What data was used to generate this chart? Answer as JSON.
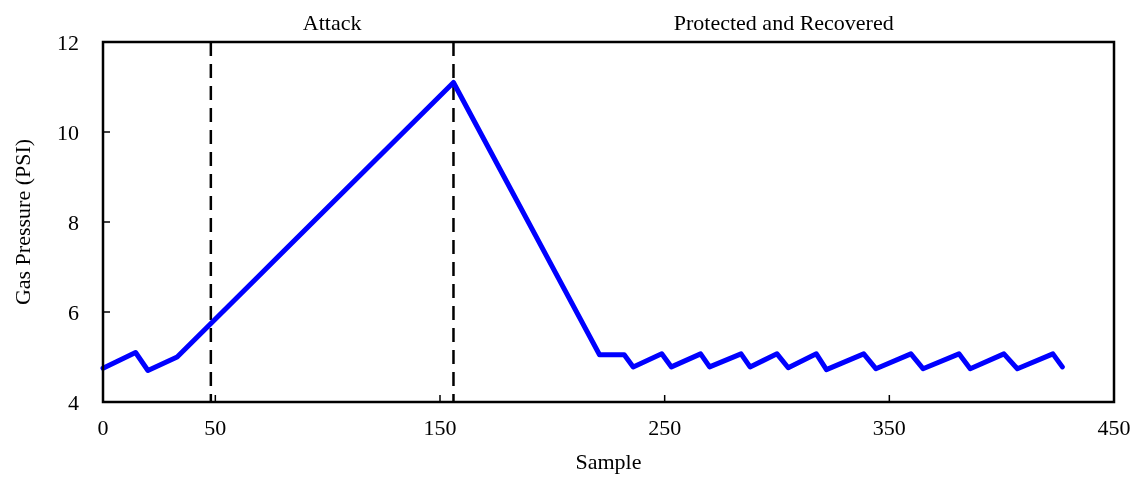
{
  "chart_data": {
    "type": "line",
    "xlabel": "Sample",
    "ylabel": "Gas Pressure (PSI)",
    "xlim": [
      0,
      450
    ],
    "ylim": [
      4,
      12
    ],
    "xticks": [
      0,
      50,
      150,
      250,
      350,
      450
    ],
    "yticks": [
      4,
      6,
      8,
      10,
      12
    ],
    "grid": false,
    "marker": "none",
    "line_style": "solid",
    "series": [
      {
        "color": "#0000ff",
        "x": [
          0,
          14.5,
          20,
          33,
          156,
          221,
          232,
          236,
          248.7,
          253,
          266,
          270,
          284,
          288,
          300,
          305,
          317.5,
          322,
          338.6,
          344,
          359.6,
          365,
          381,
          386,
          401,
          407,
          422.8,
          427
        ],
        "values": [
          4.75,
          5.1,
          4.7,
          5.0,
          11.1,
          5.05,
          5.05,
          4.78,
          5.07,
          4.78,
          5.07,
          4.78,
          5.07,
          4.78,
          5.07,
          4.76,
          5.07,
          4.72,
          5.07,
          4.74,
          5.07,
          4.74,
          5.07,
          4.74,
          5.07,
          4.74,
          5.07,
          4.78
        ]
      }
    ],
    "ref_lines": [
      {
        "axis": "x",
        "value": 48,
        "color": "#000000",
        "line_style": "dashed"
      },
      {
        "axis": "x",
        "value": 156,
        "color": "#000000",
        "line_style": "dashed"
      }
    ],
    "annotations": [
      "Attack",
      "Protected and Recovered"
    ]
  }
}
